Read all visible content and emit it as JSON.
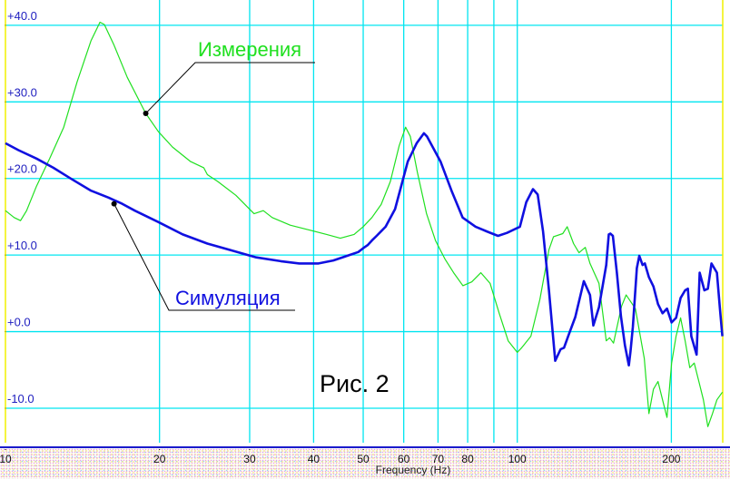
{
  "chart_data": {
    "type": "line",
    "title": "",
    "xlabel": "Frequency (Hz)",
    "ylabel": "",
    "xscale": "log",
    "xlim": [
      10,
      252
    ],
    "ylim": [
      -14.5,
      43.3
    ],
    "grid": true,
    "x_ticks": [
      10,
      20,
      30,
      40,
      50,
      60,
      70,
      80,
      90,
      100,
      200
    ],
    "x_tick_labels": [
      "10",
      "20",
      "30",
      "40",
      "50",
      "60",
      "70",
      "80",
      "",
      "100",
      "200"
    ],
    "y_ticks": [
      40,
      30,
      20,
      10,
      0,
      -10
    ],
    "y_tick_labels": [
      "+40.0",
      "+30.0",
      "+20.0",
      "+10.0",
      "+0.0",
      "-10.0"
    ],
    "annotation": "Рис. 2",
    "colors": {
      "grid": "#00e5f0",
      "axis": "#1a1acc",
      "tick_text": "#2020c0",
      "border": "#f0f000"
    },
    "series": [
      {
        "name": "Измерения",
        "color": "#20e020",
        "label_point": [
          18.8,
          28.5
        ],
        "points": [
          [
            10,
            15.8
          ],
          [
            10.4,
            14.9
          ],
          [
            10.7,
            14.5
          ],
          [
            11.0,
            15.8
          ],
          [
            11.5,
            19.0
          ],
          [
            12.2,
            22.6
          ],
          [
            13.0,
            26.7
          ],
          [
            13.8,
            32.6
          ],
          [
            14.7,
            38.0
          ],
          [
            15.3,
            40.4
          ],
          [
            15.6,
            40.1
          ],
          [
            16.3,
            37.4
          ],
          [
            17.3,
            33.2
          ],
          [
            18.8,
            28.5
          ],
          [
            19.9,
            26.1
          ],
          [
            21.2,
            24.1
          ],
          [
            23.0,
            22.2
          ],
          [
            24.4,
            21.4
          ],
          [
            24.8,
            20.5
          ],
          [
            26.0,
            19.6
          ],
          [
            28.2,
            17.8
          ],
          [
            30.6,
            15.4
          ],
          [
            31.9,
            15.8
          ],
          [
            33.2,
            14.9
          ],
          [
            36.0,
            13.9
          ],
          [
            39.1,
            13.3
          ],
          [
            42.4,
            12.7
          ],
          [
            45.1,
            12.2
          ],
          [
            48.0,
            12.7
          ],
          [
            50.0,
            13.7
          ],
          [
            52.0,
            14.9
          ],
          [
            54.2,
            16.6
          ],
          [
            56.5,
            19.6
          ],
          [
            58.8,
            24.3
          ],
          [
            60.5,
            26.7
          ],
          [
            61.8,
            25.5
          ],
          [
            63.8,
            20.8
          ],
          [
            66.5,
            15.4
          ],
          [
            69.2,
            11.9
          ],
          [
            72.2,
            9.5
          ],
          [
            75.1,
            7.7
          ],
          [
            78.3,
            6.0
          ],
          [
            81.5,
            6.5
          ],
          [
            84.9,
            7.7
          ],
          [
            88.5,
            6.3
          ],
          [
            92.2,
            2.4
          ],
          [
            96.0,
            -1.2
          ],
          [
            100,
            -2.7
          ],
          [
            102,
            -2.1
          ],
          [
            106.3,
            -0.6
          ],
          [
            110.7,
            4.2
          ],
          [
            115.3,
            10.7
          ],
          [
            117.7,
            12.4
          ],
          [
            122.7,
            12.8
          ],
          [
            125.2,
            13.7
          ],
          [
            128.8,
            11.5
          ],
          [
            132.0,
            10.3
          ],
          [
            135.8,
            11.0
          ],
          [
            138.7,
            8.9
          ],
          [
            144.4,
            6.3
          ],
          [
            149.2,
            -1.2
          ],
          [
            151.5,
            -0.8
          ],
          [
            154.2,
            -1.5
          ],
          [
            159.8,
            3.3
          ],
          [
            163.2,
            4.8
          ],
          [
            170.1,
            3.0
          ],
          [
            177.1,
            -3.5
          ],
          [
            180.8,
            -10.7
          ],
          [
            184.5,
            -7.5
          ],
          [
            188.3,
            -6.5
          ],
          [
            192.2,
            -8.9
          ],
          [
            196.1,
            -11.2
          ],
          [
            200.2,
            -4.1
          ],
          [
            204.3,
            -0.6
          ],
          [
            208.5,
            1.8
          ],
          [
            212.8,
            -1.2
          ],
          [
            217.3,
            -4.7
          ],
          [
            221.7,
            -4.1
          ],
          [
            226.3,
            -6.5
          ],
          [
            231.0,
            -8.9
          ],
          [
            235.7,
            -12.4
          ],
          [
            240.6,
            -10.7
          ],
          [
            245.5,
            -8.9
          ],
          [
            251.6,
            -7.9
          ]
        ]
      },
      {
        "name": "Симуляция",
        "color": "#1010e0",
        "label_point": [
          16.3,
          16.7
        ],
        "points": [
          [
            10,
            24.6
          ],
          [
            10.6,
            23.7
          ],
          [
            11.5,
            22.6
          ],
          [
            12.4,
            21.4
          ],
          [
            13.4,
            20.0
          ],
          [
            14.7,
            18.4
          ],
          [
            15.9,
            17.5
          ],
          [
            16.9,
            16.7
          ],
          [
            17.9,
            15.8
          ],
          [
            19.9,
            14.3
          ],
          [
            22.2,
            12.7
          ],
          [
            24.8,
            11.5
          ],
          [
            27.7,
            10.6
          ],
          [
            30.9,
            9.7
          ],
          [
            34.5,
            9.2
          ],
          [
            37.5,
            8.9
          ],
          [
            40.9,
            8.9
          ],
          [
            43.7,
            9.3
          ],
          [
            46.5,
            9.9
          ],
          [
            48.9,
            10.4
          ],
          [
            50.0,
            10.9
          ],
          [
            51.0,
            11.3
          ],
          [
            52.0,
            11.9
          ],
          [
            53.1,
            12.5
          ],
          [
            55.3,
            13.7
          ],
          [
            57.7,
            16.0
          ],
          [
            61.1,
            22.2
          ],
          [
            63.6,
            24.6
          ],
          [
            65.7,
            25.9
          ],
          [
            66.6,
            25.5
          ],
          [
            70.8,
            22.2
          ],
          [
            74.4,
            18.4
          ],
          [
            78.2,
            14.9
          ],
          [
            82.9,
            13.7
          ],
          [
            87.1,
            13.1
          ],
          [
            91.7,
            12.5
          ],
          [
            95.5,
            12.9
          ],
          [
            101.2,
            13.7
          ],
          [
            104.1,
            16.9
          ],
          [
            107.3,
            18.6
          ],
          [
            109.6,
            17.9
          ],
          [
            112.3,
            13.1
          ],
          [
            115.3,
            5.4
          ],
          [
            118.6,
            -3.8
          ],
          [
            121.5,
            -2.3
          ],
          [
            123.4,
            -2.1
          ],
          [
            126.2,
            -0.3
          ],
          [
            129.8,
            1.9
          ],
          [
            134.9,
            6.6
          ],
          [
            138.7,
            4.8
          ],
          [
            140.8,
            0.8
          ],
          [
            144.4,
            3.2
          ],
          [
            149.2,
            8.7
          ],
          [
            150.9,
            12.7
          ],
          [
            152.0,
            12.8
          ],
          [
            153.7,
            12.5
          ],
          [
            156.5,
            7.7
          ],
          [
            159.4,
            2.0
          ],
          [
            162.3,
            -1.8
          ],
          [
            165.2,
            -4.4
          ],
          [
            166.4,
            -2.6
          ],
          [
            168.2,
            0.6
          ],
          [
            171.2,
            8.3
          ],
          [
            173.1,
            9.9
          ],
          [
            175.7,
            8.7
          ],
          [
            177.5,
            8.9
          ],
          [
            180.8,
            7.1
          ],
          [
            184.5,
            5.9
          ],
          [
            188.3,
            3.6
          ],
          [
            192.2,
            2.4
          ],
          [
            196.1,
            3.0
          ],
          [
            200.2,
            1.2
          ],
          [
            204.3,
            1.8
          ],
          [
            208.5,
            4.4
          ],
          [
            212.8,
            5.4
          ],
          [
            215.4,
            5.6
          ],
          [
            218.8,
            -0.6
          ],
          [
            224.0,
            -3.0
          ],
          [
            227.2,
            7.7
          ],
          [
            232.0,
            5.4
          ],
          [
            235.7,
            5.6
          ],
          [
            239.6,
            8.9
          ],
          [
            245.5,
            7.7
          ],
          [
            248.8,
            3.0
          ],
          [
            251.6,
            -0.6
          ]
        ]
      }
    ]
  }
}
